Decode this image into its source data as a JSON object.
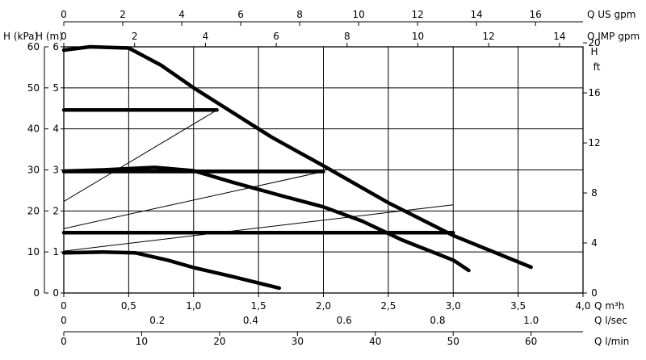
{
  "chart_data": {
    "type": "line",
    "x_axis_main": {
      "unit": "Q m³h",
      "ticks": [
        "0",
        "0,5",
        "1,0",
        "1,5",
        "2,0",
        "2,5",
        "3,0",
        "3,5",
        "4,0"
      ],
      "range": [
        0,
        4.0
      ]
    },
    "x_axis_ls": {
      "unit": "Q l/sec",
      "ticks": [
        "0",
        "0.2",
        "0.4",
        "0.6",
        "0.8",
        "1.0"
      ],
      "values": [
        0,
        0.2,
        0.4,
        0.6,
        0.8,
        1.0
      ]
    },
    "x_axis_lmin": {
      "unit": "Q l/min",
      "ticks": [
        "0",
        "10",
        "20",
        "30",
        "40",
        "50",
        "60"
      ],
      "values": [
        0,
        10,
        20,
        30,
        40,
        50,
        60
      ]
    },
    "x_axis_usgpm": {
      "unit": "Q US gpm",
      "ticks": [
        "0",
        "2",
        "4",
        "6",
        "8",
        "10",
        "12",
        "14",
        "16"
      ],
      "values": [
        0,
        2,
        4,
        6,
        8,
        10,
        12,
        14,
        16
      ]
    },
    "x_axis_impgpm": {
      "unit": "Q IMP gpm",
      "ticks": [
        "0",
        "2",
        "4",
        "6",
        "8",
        "10",
        "12",
        "14"
      ],
      "values": [
        0,
        2,
        4,
        6,
        8,
        10,
        12,
        14
      ]
    },
    "y_axis_m": {
      "unit": "H (m)",
      "ticks": [
        "0",
        "1",
        "2",
        "3",
        "4",
        "5",
        "6"
      ],
      "range": [
        0,
        6
      ]
    },
    "y_axis_kpa": {
      "unit": "H (kPa)",
      "ticks": [
        "0",
        "10",
        "20",
        "30",
        "40",
        "50",
        "60"
      ],
      "values": [
        0,
        10,
        20,
        30,
        40,
        50,
        60
      ]
    },
    "y_axis_ft": {
      "unit_line1": "H",
      "unit_line2": "ft",
      "ticks": [
        "0",
        "4",
        "8",
        "12",
        "16",
        "20"
      ],
      "values": [
        0,
        4,
        8,
        12,
        16,
        20
      ]
    },
    "grid": true,
    "series": [
      {
        "style": "thick",
        "points": [
          [
            0,
            5.92
          ],
          [
            0.2,
            6.0
          ],
          [
            0.5,
            5.97
          ],
          [
            0.75,
            5.55
          ],
          [
            1.0,
            5.0
          ],
          [
            1.3,
            4.4
          ],
          [
            1.6,
            3.8
          ],
          [
            2.0,
            3.1
          ],
          [
            2.5,
            2.2
          ],
          [
            3.0,
            1.4
          ],
          [
            3.6,
            0.63
          ]
        ]
      },
      {
        "style": "thick",
        "points": [
          [
            0,
            2.97
          ],
          [
            0.3,
            3.0
          ],
          [
            0.7,
            3.06
          ],
          [
            1.0,
            2.98
          ],
          [
            1.3,
            2.7
          ],
          [
            1.7,
            2.35
          ],
          [
            2.0,
            2.1
          ],
          [
            2.3,
            1.75
          ],
          [
            2.6,
            1.3
          ],
          [
            3.0,
            0.8
          ],
          [
            3.12,
            0.55
          ]
        ]
      },
      {
        "style": "thick",
        "points": [
          [
            0,
            0.98
          ],
          [
            0.3,
            1.0
          ],
          [
            0.55,
            0.98
          ],
          [
            0.8,
            0.8
          ],
          [
            1.0,
            0.62
          ],
          [
            1.3,
            0.4
          ],
          [
            1.66,
            0.12
          ]
        ]
      },
      {
        "style": "thick",
        "points": [
          [
            0,
            4.46
          ],
          [
            1.18,
            4.46
          ]
        ]
      },
      {
        "style": "thick",
        "points": [
          [
            0,
            2.96
          ],
          [
            2.0,
            2.96
          ]
        ]
      },
      {
        "style": "thick",
        "points": [
          [
            0,
            1.47
          ],
          [
            3.0,
            1.47
          ]
        ]
      },
      {
        "style": "thin",
        "points": [
          [
            0,
            2.23
          ],
          [
            1.18,
            4.46
          ]
        ]
      },
      {
        "style": "thin",
        "points": [
          [
            0,
            1.57
          ],
          [
            2.0,
            2.96
          ]
        ]
      },
      {
        "style": "thin",
        "points": [
          [
            0,
            1.02
          ],
          [
            3.0,
            2.15
          ]
        ]
      }
    ]
  }
}
